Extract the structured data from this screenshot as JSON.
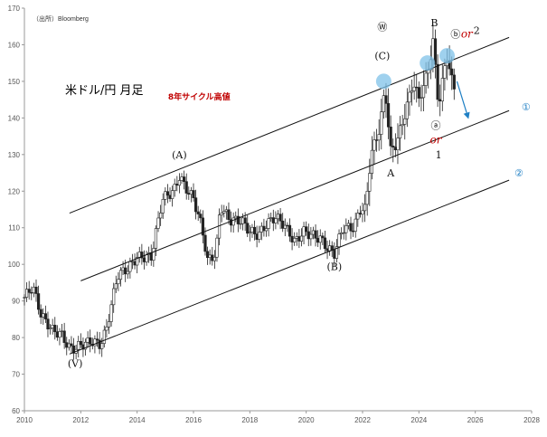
{
  "source": "（出所）Bloomberg",
  "title": "米ドル/円 月足",
  "chart_data": {
    "type": "candlestick",
    "xlim": [
      2010,
      2028
    ],
    "ylim": [
      60,
      170
    ],
    "x_ticks": [
      2010,
      2012,
      2014,
      2016,
      2018,
      2020,
      2022,
      2024,
      2026,
      2028
    ],
    "y_ticks": [
      60,
      70,
      80,
      90,
      100,
      110,
      120,
      130,
      140,
      150,
      160,
      170
    ],
    "price_path": [
      [
        2010.0,
        91
      ],
      [
        2010.3,
        94
      ],
      [
        2010.6,
        86
      ],
      [
        2011.0,
        82
      ],
      [
        2011.3,
        81
      ],
      [
        2011.6,
        77
      ],
      [
        2011.8,
        77
      ],
      [
        2012.0,
        78
      ],
      [
        2012.4,
        79
      ],
      [
        2012.7,
        78
      ],
      [
        2012.9,
        82
      ],
      [
        2013.3,
        97
      ],
      [
        2013.7,
        99
      ],
      [
        2014.0,
        102
      ],
      [
        2014.5,
        102
      ],
      [
        2014.9,
        118
      ],
      [
        2015.3,
        120
      ],
      [
        2015.5,
        124
      ],
      [
        2015.8,
        120
      ],
      [
        2016.0,
        118
      ],
      [
        2016.3,
        110
      ],
      [
        2016.5,
        101
      ],
      [
        2016.8,
        103
      ],
      [
        2016.95,
        116
      ],
      [
        2017.3,
        112
      ],
      [
        2017.7,
        112
      ],
      [
        2018.0,
        109
      ],
      [
        2018.3,
        108
      ],
      [
        2018.6,
        111
      ],
      [
        2018.9,
        113
      ],
      [
        2019.2,
        111
      ],
      [
        2019.6,
        106
      ],
      [
        2019.9,
        109
      ],
      [
        2020.2,
        108
      ],
      [
        2020.5,
        107
      ],
      [
        2020.8,
        104
      ],
      [
        2021.0,
        103
      ],
      [
        2021.3,
        110
      ],
      [
        2021.7,
        110
      ],
      [
        2021.9,
        115
      ],
      [
        2022.1,
        115
      ],
      [
        2022.3,
        130
      ],
      [
        2022.6,
        137
      ],
      [
        2022.8,
        148
      ],
      [
        2023.0,
        131
      ],
      [
        2023.2,
        133
      ],
      [
        2023.5,
        141
      ],
      [
        2023.8,
        150
      ],
      [
        2024.0,
        145
      ],
      [
        2024.3,
        152
      ],
      [
        2024.5,
        161
      ],
      [
        2024.7,
        143
      ],
      [
        2024.9,
        153
      ],
      [
        2025.0,
        157
      ],
      [
        2025.2,
        149
      ],
      [
        2025.3,
        147
      ]
    ],
    "channel_lines": [
      {
        "name": "upper",
        "from": [
          2011.6,
          114
        ],
        "to": [
          2027.2,
          162
        ]
      },
      {
        "name": "①",
        "from": [
          2012.0,
          95.5
        ],
        "to": [
          2027.2,
          142
        ]
      },
      {
        "name": "②",
        "from": [
          2011.6,
          75.5
        ],
        "to": [
          2027.2,
          123
        ]
      }
    ],
    "wave_labels": [
      {
        "text": "(V)",
        "x": 2011.8,
        "y": 72,
        "style": "serif"
      },
      {
        "text": "(A)",
        "x": 2015.5,
        "y": 129,
        "style": "serif"
      },
      {
        "text": "(B)",
        "x": 2021.0,
        "y": 98.5,
        "style": "serif"
      },
      {
        "text": "(C)",
        "x": 2022.7,
        "y": 156,
        "style": "serif"
      },
      {
        "text": "Ⓦ",
        "x": 2022.7,
        "y": 164,
        "style": "circle"
      },
      {
        "text": "A",
        "x": 2023.0,
        "y": 124,
        "style": "serif"
      },
      {
        "text": "B",
        "x": 2024.55,
        "y": 165,
        "style": "serif"
      },
      {
        "text": "ⓐ",
        "x": 2024.6,
        "y": 137,
        "style": "circle"
      },
      {
        "text": "ⓑ",
        "x": 2025.3,
        "y": 162,
        "style": "circle"
      },
      {
        "text": "2",
        "x": 2026.05,
        "y": 163,
        "style": "serif"
      },
      {
        "text": "1",
        "x": 2024.7,
        "y": 129,
        "style": "serif"
      }
    ],
    "or_labels": [
      {
        "text": "or",
        "x": 2025.7,
        "y": 162
      },
      {
        "text": "or",
        "x": 2024.6,
        "y": 133
      }
    ],
    "annotations": [
      {
        "text": "8年サイクル高値",
        "x": 2016.2,
        "y": 145
      },
      {
        "text": "8年サイクル高値",
        "x": 2024.6,
        "y": 174
      }
    ],
    "channel_markers": [
      {
        "text": "①",
        "x": 2027.8,
        "y": 143
      },
      {
        "text": "②",
        "x": 2027.55,
        "y": 125
      }
    ],
    "highlight_circles": [
      {
        "x": 2022.75,
        "y": 150
      },
      {
        "x": 2024.3,
        "y": 155
      },
      {
        "x": 2025.0,
        "y": 157
      }
    ],
    "projection_arrow": {
      "from": [
        2025.35,
        150
      ],
      "to": [
        2025.75,
        140
      ]
    },
    "colors": {
      "candle": "#222222",
      "channel": "#111111",
      "highlight": "#7fc1e8",
      "arrow": "#1e7fc4",
      "note": "#c00000",
      "axis": "#999999"
    }
  }
}
